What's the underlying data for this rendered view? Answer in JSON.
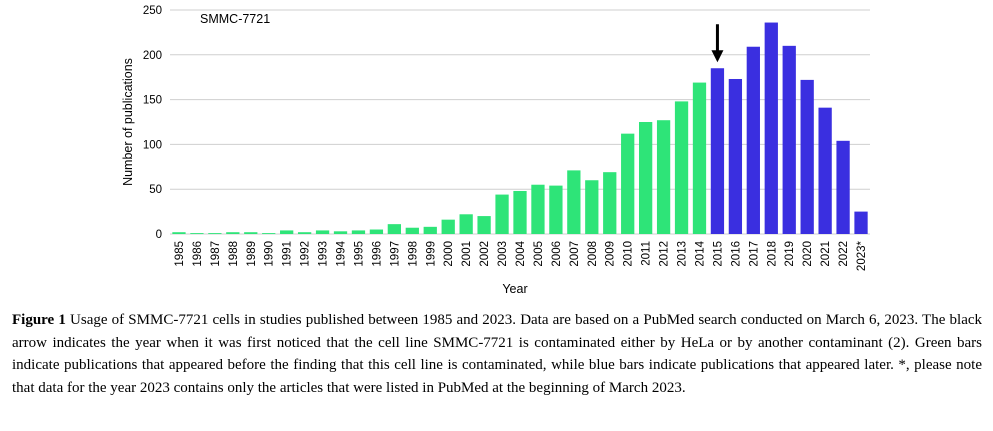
{
  "chart_data": {
    "type": "bar",
    "panel_label": "SMMC-7721",
    "xlabel": "Year",
    "ylabel": "Number of publications",
    "ylim": [
      0,
      250
    ],
    "yticks": [
      0,
      50,
      100,
      150,
      200,
      250
    ],
    "grid": true,
    "categories": [
      "1985",
      "1986",
      "1987",
      "1988",
      "1989",
      "1990",
      "1991",
      "1992",
      "1993",
      "1994",
      "1995",
      "1996",
      "1997",
      "1998",
      "1999",
      "2000",
      "2001",
      "2002",
      "2003",
      "2004",
      "2005",
      "2006",
      "2007",
      "2008",
      "2009",
      "2010",
      "2011",
      "2012",
      "2013",
      "2014",
      "2015",
      "2016",
      "2017",
      "2018",
      "2019",
      "2020",
      "2021",
      "2022",
      "2023*"
    ],
    "values": [
      2,
      1,
      1,
      2,
      2,
      1,
      4,
      2,
      4,
      3,
      4,
      5,
      11,
      7,
      8,
      16,
      22,
      20,
      44,
      48,
      55,
      54,
      71,
      60,
      69,
      112,
      125,
      127,
      148,
      169,
      185,
      173,
      209,
      236,
      210,
      172,
      141,
      104,
      25
    ],
    "colors": {
      "before": "#2ee478",
      "after": "#3a2fe0"
    },
    "first_after_index": 30,
    "arrow_category": "2015"
  },
  "caption": {
    "label": "Figure 1",
    "text": "Usage of SMMC-7721 cells in studies published between 1985 and 2023. Data are based on a PubMed search conducted on March 6, 2023. The black arrow indicates the year when it was first noticed that the cell line SMMC-7721 is contaminated either by HeLa or by another contaminant (2). Green bars indicate publications that appeared before the finding that this cell line is contaminated, while blue bars indicate publications that appeared later. *, please note that data for the year 2023 contains only the articles that were listed in PubMed at the beginning of March 2023."
  }
}
